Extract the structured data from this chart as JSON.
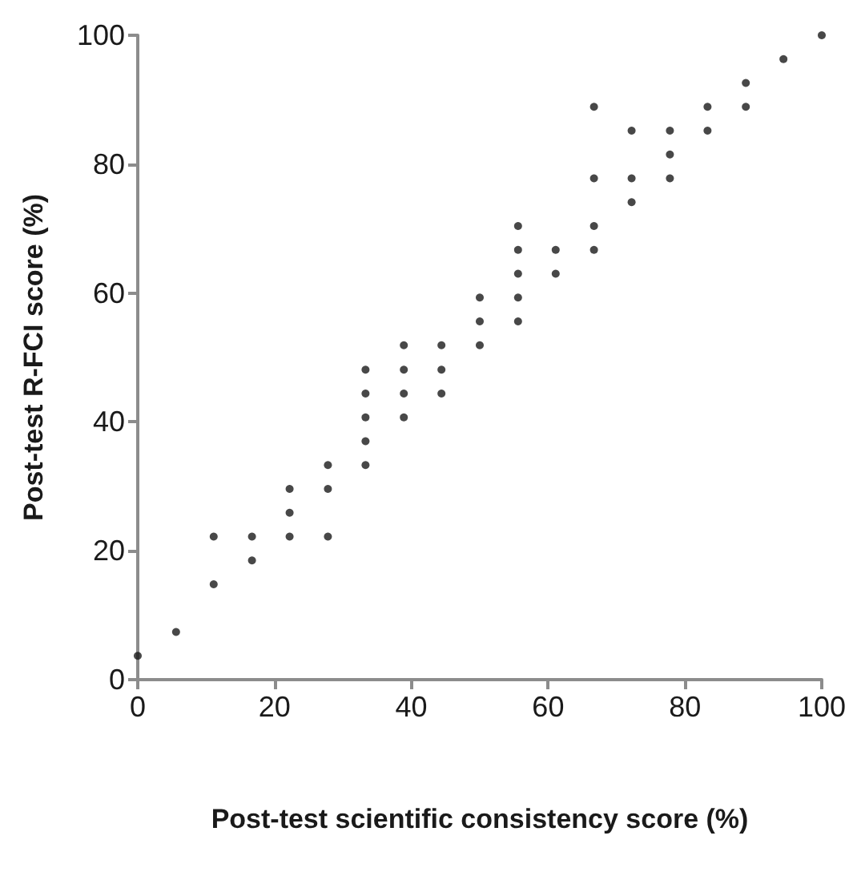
{
  "chart_data": {
    "type": "scatter",
    "xlabel": "Post-test scientific consistency score (%)",
    "ylabel": "Post-test R-FCI score (%)",
    "xlim": [
      0,
      100
    ],
    "xticks": [
      0,
      20,
      40,
      60,
      80,
      100
    ],
    "ylim": [
      0,
      100
    ],
    "yticks": [
      0,
      20,
      40,
      60,
      80,
      100
    ],
    "grid": false,
    "marker": "circle",
    "series": [
      {
        "color": "#1a1a1a",
        "x": [
          0,
          5.6,
          11.1,
          11.1,
          16.7,
          16.7,
          22.2,
          22.2,
          22.2,
          27.8,
          27.8,
          27.8,
          33.3,
          33.3,
          33.3,
          33.3,
          33.3,
          38.9,
          38.9,
          38.9,
          38.9,
          44.4,
          44.4,
          44.4,
          50,
          50,
          50,
          55.6,
          55.6,
          55.6,
          55.6,
          55.6,
          61.1,
          61.1,
          66.7,
          66.7,
          66.7,
          66.7,
          72.2,
          72.2,
          72.2,
          77.8,
          77.8,
          77.8,
          83.3,
          83.3,
          88.9,
          88.9,
          94.4,
          100
        ],
        "values": [
          3.7,
          7.4,
          14.8,
          22.2,
          18.5,
          22.2,
          22.2,
          25.9,
          29.6,
          22.2,
          29.6,
          33.3,
          33.3,
          37.0,
          40.7,
          44.4,
          48.1,
          40.7,
          44.4,
          48.1,
          51.9,
          44.4,
          48.1,
          51.9,
          51.9,
          55.6,
          59.3,
          55.6,
          59.3,
          63.0,
          66.7,
          70.4,
          63.0,
          66.7,
          66.7,
          70.4,
          77.8,
          88.9,
          74.1,
          77.8,
          85.2,
          77.8,
          81.5,
          85.2,
          85.2,
          88.9,
          88.9,
          92.6,
          96.3,
          100
        ]
      }
    ]
  }
}
